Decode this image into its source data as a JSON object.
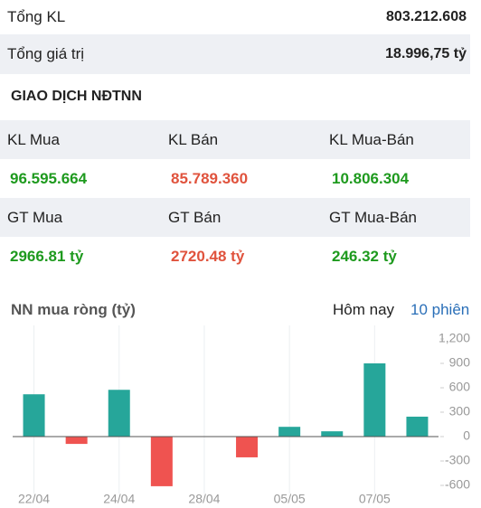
{
  "summary": {
    "rows": [
      {
        "label": "Tổng KL",
        "value": "803.212.608"
      },
      {
        "label": "Tổng giá trị",
        "value": "18.996,75 tỷ"
      }
    ]
  },
  "section_title": "GIAO DỊCH NĐTNN",
  "foreign": {
    "headers": [
      [
        "KL Mua",
        "KL Bán",
        "KL Mua-Bán"
      ],
      [
        "GT Mua",
        "GT Bán",
        "GT Mua-Bán"
      ]
    ],
    "values": [
      [
        "96.595.664",
        "85.789.360",
        "10.806.304"
      ],
      [
        "2966.81 tỷ",
        "2720.48 tỷ",
        "246.32 tỷ"
      ]
    ],
    "value_colors": [
      "#1e9a1e",
      "#e0533d",
      "#1e9a1e"
    ]
  },
  "chart_data": {
    "type": "bar",
    "title": "NN mua ròng (tỷ)",
    "tabs": [
      "Hôm nay",
      "10 phiên"
    ],
    "active_tab": 1,
    "categories": [
      "22/04",
      null,
      "24/04",
      null,
      "28/04",
      null,
      "05/05",
      null,
      "07/05",
      null
    ],
    "values": [
      520,
      -90,
      575,
      -610,
      0,
      -255,
      120,
      65,
      900,
      245
    ],
    "positive_color": "#26a69a",
    "negative_color": "#ef5350",
    "ylim": [
      -700,
      1300
    ],
    "yticks": [
      {
        "value": 1200,
        "label": "1,200"
      },
      900,
      600,
      300,
      0,
      -300,
      -600
    ]
  }
}
